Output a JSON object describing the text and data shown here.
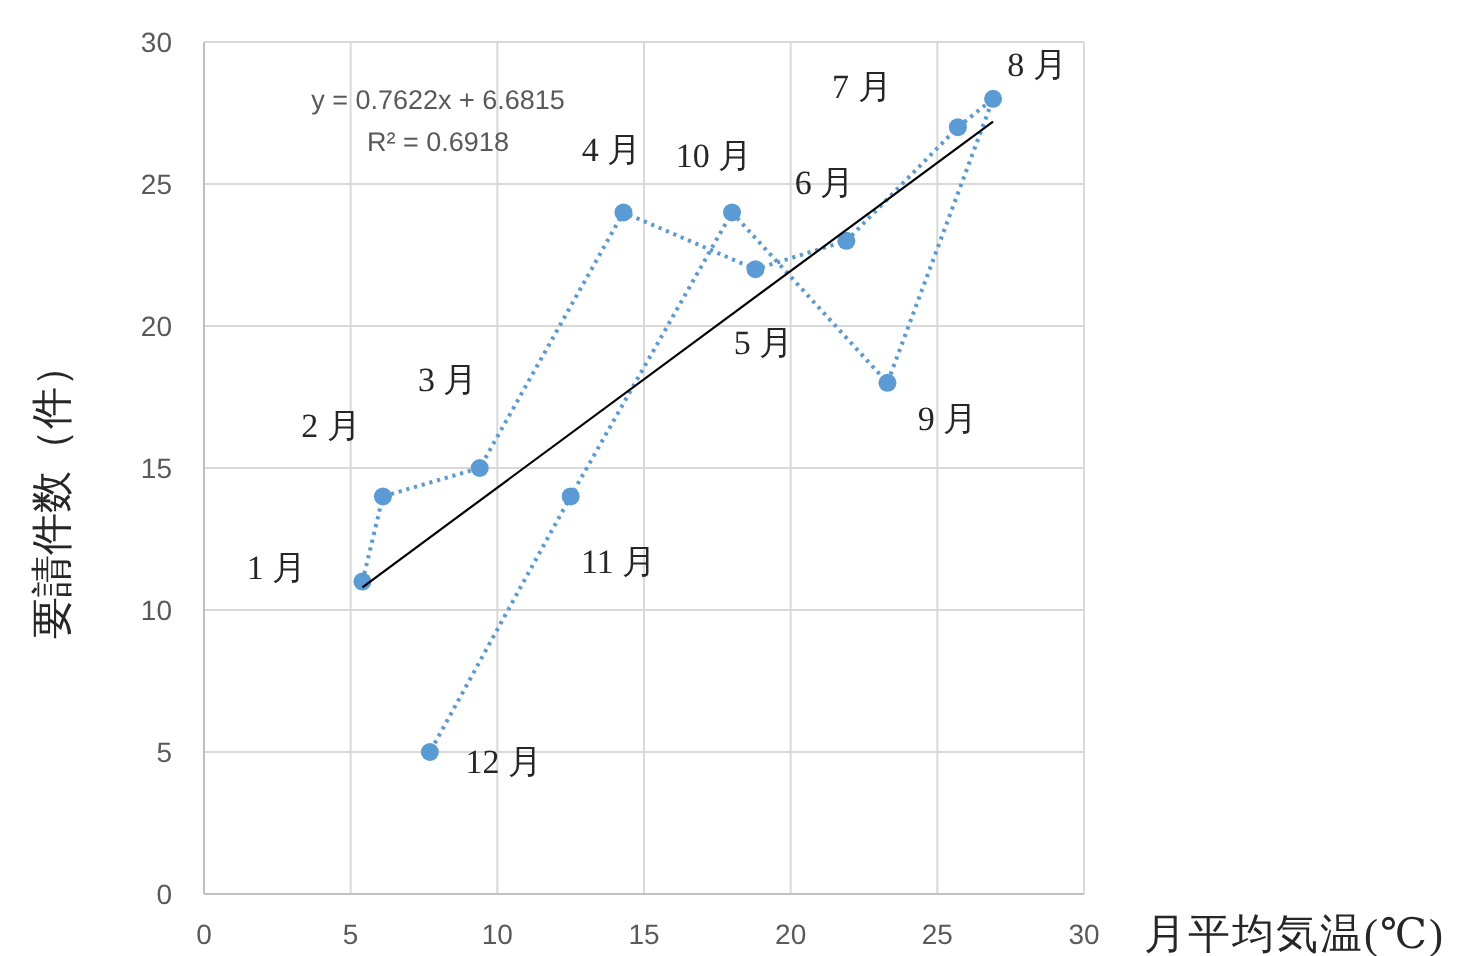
{
  "chart_data": {
    "type": "line",
    "xlabel": "月平均気温(℃)",
    "ylabel": "要請件数（件）",
    "xlim": [
      0,
      30
    ],
    "xticks": [
      0,
      5,
      10,
      15,
      20,
      25,
      30
    ],
    "ylim": [
      0,
      30
    ],
    "yticks": [
      0,
      5,
      10,
      15,
      20,
      25,
      30
    ],
    "grid": true,
    "marker": "circle",
    "line_style": "dotted",
    "series": [
      {
        "color": "#5b9bd5",
        "x": [
          5.4,
          6.1,
          9.4,
          14.3,
          18.8,
          21.9,
          25.7,
          26.9,
          23.3,
          18.0,
          12.5,
          7.7
        ],
        "values": [
          11,
          14,
          15,
          24,
          22,
          23,
          27,
          28,
          18,
          24,
          14,
          5
        ]
      },
      {
        "type": "line",
        "color": "#000000",
        "marker": "none",
        "line_style": "solid",
        "x": [
          5.4,
          26.9
        ],
        "values": [
          10.8,
          27.2
        ]
      }
    ],
    "annotations": [
      "y = 0.7622x + 6.6815",
      "R² = 0.6918",
      {
        "text": "1 月",
        "x": 5.4,
        "y": 11
      },
      {
        "text": "2 月",
        "x": 6.1,
        "y": 14
      },
      {
        "text": "3 月",
        "x": 9.4,
        "y": 15
      },
      {
        "text": "4 月",
        "x": 14.3,
        "y": 24
      },
      {
        "text": "5 月",
        "x": 18.8,
        "y": 22
      },
      {
        "text": "6 月",
        "x": 21.9,
        "y": 23
      },
      {
        "text": "7 月",
        "x": 25.7,
        "y": 27
      },
      {
        "text": "8 月",
        "x": 26.9,
        "y": 28
      },
      {
        "text": "9 月",
        "x": 23.3,
        "y": 18
      },
      {
        "text": "10 月",
        "x": 18.0,
        "y": 24
      },
      {
        "text": "11 月",
        "x": 12.5,
        "y": 14
      },
      {
        "text": "12 月",
        "x": 7.7,
        "y": 5
      }
    ]
  }
}
